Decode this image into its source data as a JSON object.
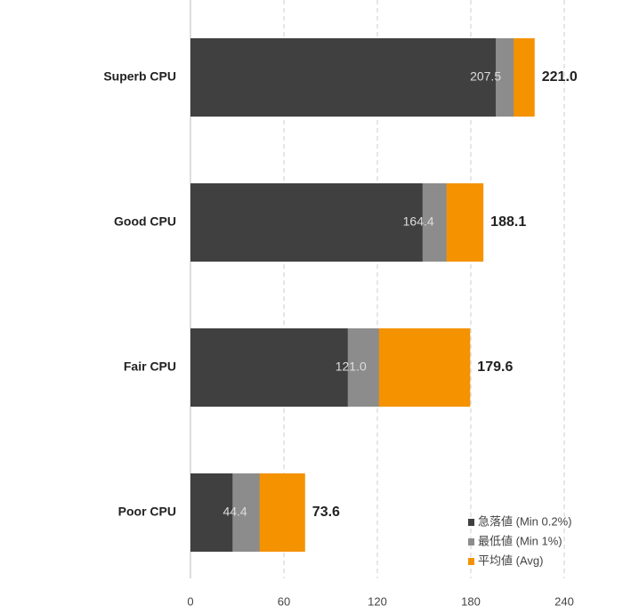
{
  "chart_data": {
    "type": "overlap-bar",
    "orientation": "horizontal",
    "categories": [
      "Superb CPU",
      "Good CPU",
      "Fair CPU",
      "Poor CPU"
    ],
    "series": [
      {
        "name": "急落値 (Min 0.2%)",
        "color": "#404040",
        "values": [
          196,
          149,
          101,
          27
        ]
      },
      {
        "name": "最低値 (Min 1%)",
        "color": "#8c8c8c",
        "values": [
          207.5,
          164.4,
          121.0,
          44.4
        ],
        "value_labels": [
          "207.5",
          "164.4",
          "121.0",
          "44.4"
        ]
      },
      {
        "name": "平均値 (Avg)",
        "color": "#f59200",
        "values": [
          221.0,
          188.1,
          179.6,
          73.6
        ],
        "value_labels": [
          "221.0",
          "188.1",
          "179.6",
          "73.6"
        ]
      }
    ],
    "xlim": [
      0,
      240
    ],
    "xticks": [
      0,
      60,
      120,
      180,
      240
    ],
    "grid": true,
    "legend": "lower right"
  }
}
